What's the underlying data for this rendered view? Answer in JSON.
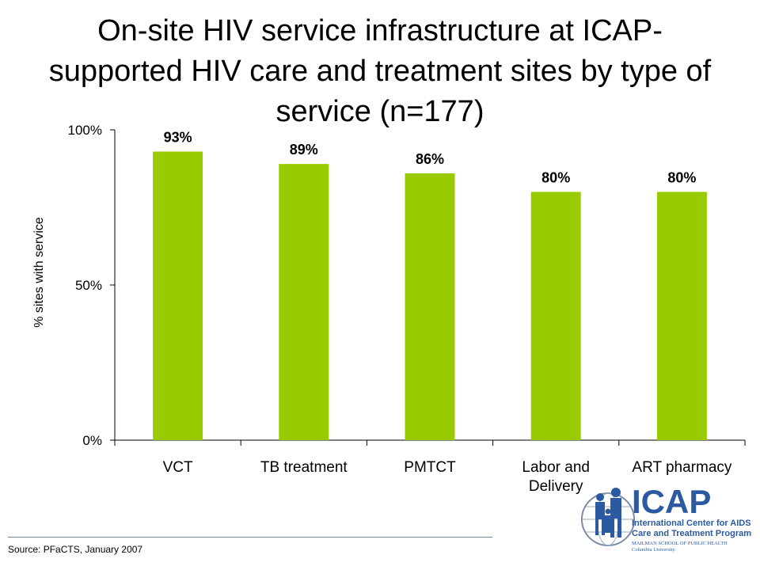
{
  "title": "On-site HIV service infrastructure at ICAP-\nsupported HIV care and treatment sites by type of\nservice (n=177)",
  "source": "Source: PFaCTS,  January 2007",
  "logo": {
    "text": "ICAP",
    "line1": "International Center for AIDS",
    "line2": "Care and Treatment Programs",
    "line3": "MAILMAN SCHOOL OF PUBLIC HEALTH",
    "line4": "Columbia University"
  },
  "colors": {
    "bar": "#99cc00",
    "logo_text": "#2b5aa0",
    "axis": "#000000"
  },
  "chart_data": {
    "type": "bar",
    "categories": [
      [
        "VCT"
      ],
      [
        "TB treatment"
      ],
      [
        "PMTCT"
      ],
      [
        "Labor and",
        "Delivery"
      ],
      [
        "ART pharmacy"
      ]
    ],
    "values": [
      93,
      89,
      86,
      80,
      80
    ],
    "data_labels": [
      "93%",
      "89%",
      "86%",
      "80%",
      "80%"
    ],
    "ylabel": "% sites with service",
    "ylim": [
      0,
      100
    ],
    "yticks": [
      0,
      50,
      100
    ],
    "ytick_labels": [
      "0%",
      "50%",
      "100%"
    ],
    "grid": false
  }
}
